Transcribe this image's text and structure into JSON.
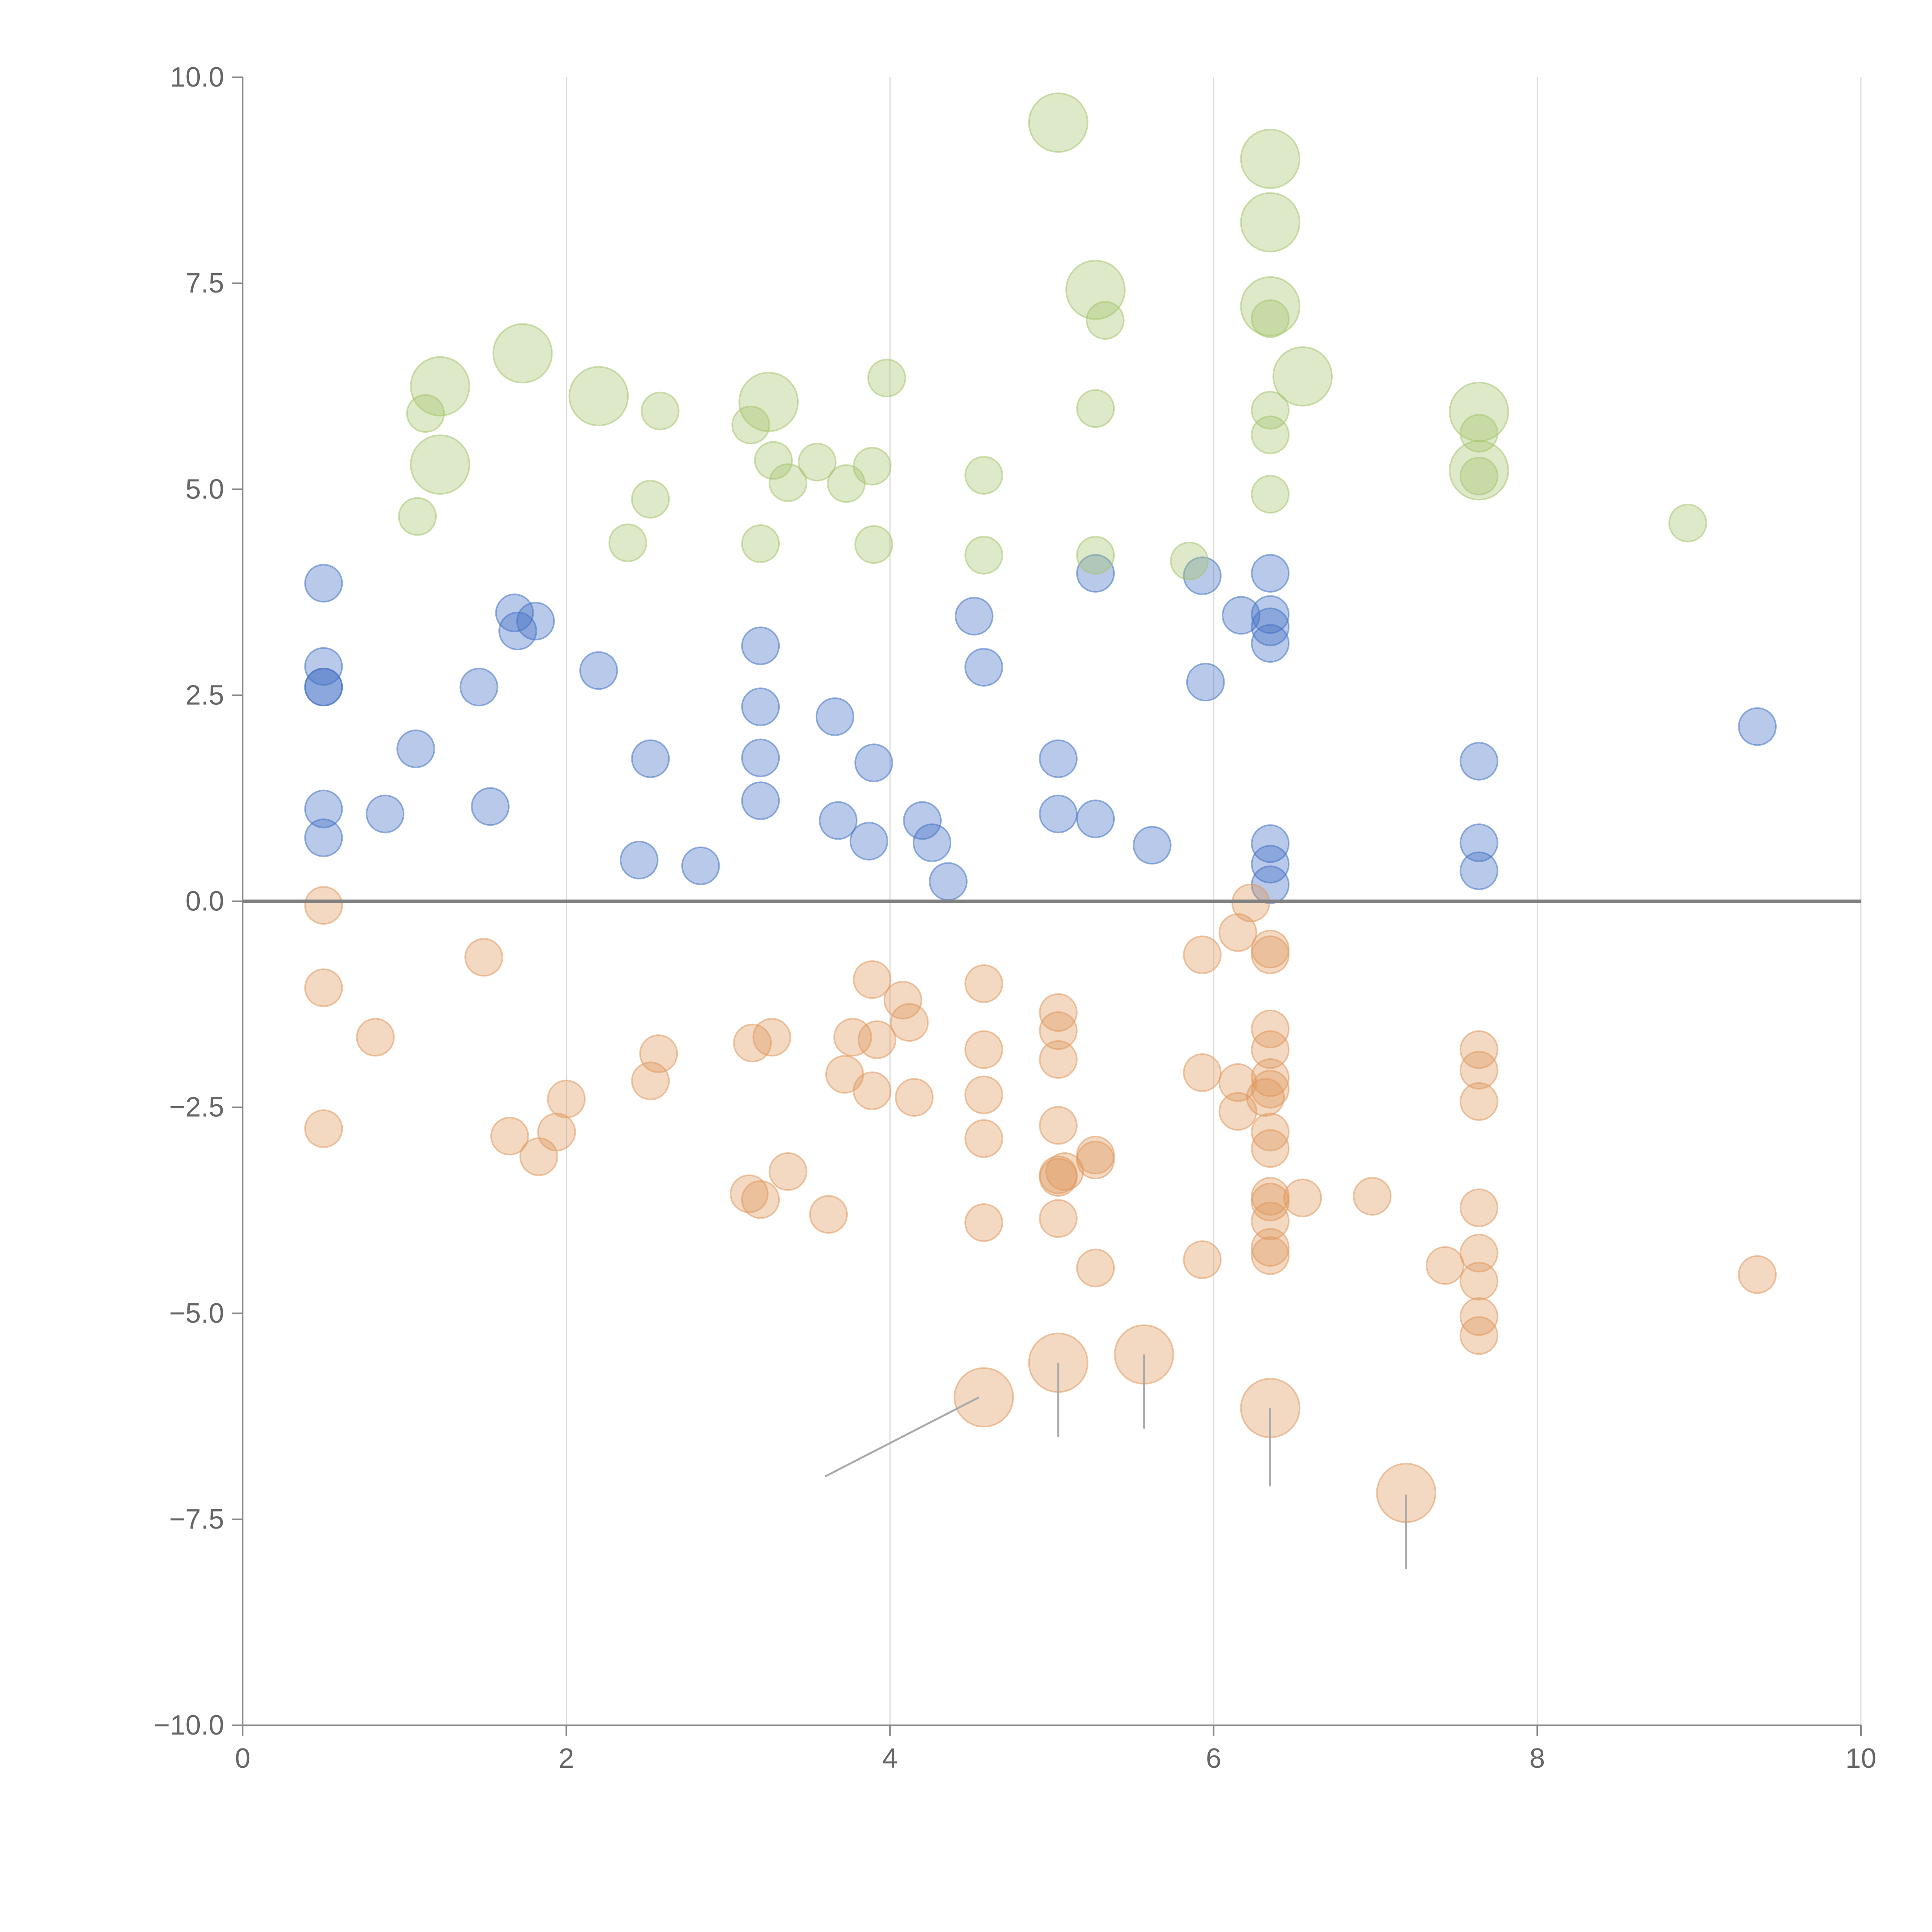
{
  "chart_data": {
    "type": "scatter",
    "variant": "bubble",
    "title": "",
    "xlabel": "",
    "ylabel": "",
    "xlim": [
      0,
      10
    ],
    "ylim": [
      -10,
      10
    ],
    "xticks": [
      0,
      2,
      4,
      6,
      8,
      10
    ],
    "xtick_labels": [
      "0",
      "2",
      "4",
      "6",
      "8",
      "10"
    ],
    "yticks": [
      -10,
      -7.5,
      -5,
      -2.5,
      0,
      2.5,
      5,
      7.5,
      10
    ],
    "ytick_labels": [
      "−10.0",
      "−7.5",
      "−5.0",
      "−2.5",
      "0.0",
      "2.5",
      "5.0",
      "7.5",
      "10.0"
    ],
    "grid": "vertical",
    "zero_line": true,
    "series": [
      {
        "name": "blue",
        "color": "#4472C4",
        "points": [
          [
            0.5,
            3.86
          ],
          [
            0.5,
            2.85
          ],
          [
            0.5,
            2.6
          ],
          [
            0.5,
            2.6
          ],
          [
            0.5,
            1.12
          ],
          [
            0.5,
            0.77
          ],
          [
            0.88,
            1.06
          ],
          [
            1.07,
            1.85
          ],
          [
            1.46,
            2.6
          ],
          [
            1.53,
            1.15
          ],
          [
            1.68,
            3.5
          ],
          [
            1.7,
            3.28
          ],
          [
            1.81,
            3.4
          ],
          [
            2.2,
            2.8
          ],
          [
            2.45,
            0.5
          ],
          [
            2.52,
            1.73
          ],
          [
            2.83,
            0.43
          ],
          [
            3.2,
            3.1
          ],
          [
            3.2,
            2.36
          ],
          [
            3.2,
            1.74
          ],
          [
            3.2,
            1.22
          ],
          [
            3.66,
            2.24
          ],
          [
            3.68,
            0.98
          ],
          [
            3.87,
            0.73
          ],
          [
            3.9,
            1.68
          ],
          [
            4.2,
            0.98
          ],
          [
            4.26,
            0.71
          ],
          [
            4.36,
            0.24
          ],
          [
            4.52,
            3.46
          ],
          [
            4.58,
            2.84
          ],
          [
            5.04,
            1.73
          ],
          [
            5.04,
            1.06
          ],
          [
            5.27,
            1.0
          ],
          [
            5.27,
            3.98
          ],
          [
            5.62,
            0.68
          ],
          [
            5.93,
            3.95
          ],
          [
            5.95,
            2.66
          ],
          [
            6.17,
            3.47
          ],
          [
            6.35,
            3.98
          ],
          [
            6.35,
            3.48
          ],
          [
            6.35,
            3.33
          ],
          [
            6.35,
            3.13
          ],
          [
            6.35,
            0.7
          ],
          [
            6.35,
            0.45
          ],
          [
            6.35,
            0.2
          ],
          [
            7.64,
            1.7
          ],
          [
            7.64,
            0.71
          ],
          [
            7.64,
            0.37
          ],
          [
            9.36,
            2.12
          ]
        ],
        "sizes": [
          1,
          1,
          1,
          1,
          1,
          1,
          1,
          1,
          1,
          1,
          1,
          1,
          1,
          1,
          1,
          1,
          1,
          1,
          1,
          1,
          1,
          1,
          1,
          1,
          1,
          1,
          1,
          1,
          1,
          1,
          1,
          1,
          1,
          1,
          1,
          1,
          1,
          1,
          1,
          1,
          1,
          1,
          1,
          1,
          1,
          1,
          1,
          1,
          1
        ]
      },
      {
        "name": "green",
        "color": "#A5C46E",
        "points": [
          [
            1.08,
            4.67
          ],
          [
            1.13,
            5.92
          ],
          [
            1.22,
            6.25
          ],
          [
            1.22,
            5.3
          ],
          [
            1.73,
            6.65
          ],
          [
            2.2,
            6.13
          ],
          [
            2.38,
            4.35
          ],
          [
            2.52,
            4.88
          ],
          [
            2.58,
            5.95
          ],
          [
            3.14,
            5.78
          ],
          [
            3.2,
            4.34
          ],
          [
            3.25,
            6.06
          ],
          [
            3.28,
            5.35
          ],
          [
            3.37,
            5.08
          ],
          [
            3.55,
            5.33
          ],
          [
            3.73,
            5.07
          ],
          [
            3.89,
            5.28
          ],
          [
            3.9,
            4.33
          ],
          [
            3.98,
            6.35
          ],
          [
            4.58,
            5.17
          ],
          [
            4.58,
            4.2
          ],
          [
            5.04,
            9.45
          ],
          [
            5.27,
            7.42
          ],
          [
            5.27,
            5.98
          ],
          [
            5.27,
            4.2
          ],
          [
            5.33,
            7.05
          ],
          [
            5.85,
            4.13
          ],
          [
            6.35,
            9.01
          ],
          [
            6.35,
            8.24
          ],
          [
            6.35,
            7.22
          ],
          [
            6.35,
            7.07
          ],
          [
            6.35,
            5.96
          ],
          [
            6.35,
            5.66
          ],
          [
            6.35,
            4.94
          ],
          [
            6.55,
            6.37
          ],
          [
            7.64,
            5.94
          ],
          [
            7.64,
            5.68
          ],
          [
            7.64,
            5.23
          ],
          [
            7.64,
            5.16
          ],
          [
            8.93,
            4.59
          ]
        ],
        "sizes": [
          1,
          1,
          2.5,
          2.5,
          2.5,
          2.5,
          1,
          1,
          1,
          1,
          1,
          2.5,
          1,
          1,
          1,
          1,
          1,
          1,
          1,
          1,
          1,
          2.5,
          2.5,
          1,
          1,
          1,
          1,
          2.5,
          2.5,
          2.5,
          1,
          1,
          1,
          1,
          2.5,
          2.5,
          1,
          2.5,
          1,
          1
        ]
      },
      {
        "name": "orange",
        "color": "#E0995E",
        "points": [
          [
            0.5,
            -0.05
          ],
          [
            0.5,
            -1.05
          ],
          [
            0.5,
            -2.76
          ],
          [
            0.82,
            -1.65
          ],
          [
            1.49,
            -0.68
          ],
          [
            1.65,
            -2.85
          ],
          [
            1.83,
            -3.1
          ],
          [
            1.94,
            -2.8
          ],
          [
            2.0,
            -2.4
          ],
          [
            2.52,
            -2.18
          ],
          [
            2.57,
            -1.85
          ],
          [
            3.13,
            -3.55
          ],
          [
            3.15,
            -1.72
          ],
          [
            3.2,
            -3.62
          ],
          [
            3.27,
            -1.65
          ],
          [
            3.37,
            -3.28
          ],
          [
            3.62,
            -3.8
          ],
          [
            3.72,
            -2.1
          ],
          [
            3.77,
            -1.65
          ],
          [
            3.89,
            -0.95
          ],
          [
            3.89,
            -2.3
          ],
          [
            3.92,
            -1.68
          ],
          [
            4.08,
            -1.2
          ],
          [
            4.12,
            -1.47
          ],
          [
            4.15,
            -2.38
          ],
          [
            4.58,
            -1.0
          ],
          [
            4.58,
            -1.8
          ],
          [
            4.58,
            -2.35
          ],
          [
            4.58,
            -2.88
          ],
          [
            4.58,
            -3.9
          ],
          [
            4.58,
            -6.02
          ],
          [
            5.04,
            -1.35
          ],
          [
            5.04,
            -1.57
          ],
          [
            5.04,
            -1.92
          ],
          [
            5.04,
            -2.72
          ],
          [
            5.04,
            -3.32
          ],
          [
            5.04,
            -3.35
          ],
          [
            5.04,
            -3.85
          ],
          [
            5.04,
            -5.6
          ],
          [
            5.08,
            -3.28
          ],
          [
            5.27,
            -3.08
          ],
          [
            5.27,
            -3.14
          ],
          [
            5.27,
            -4.45
          ],
          [
            5.57,
            -5.5
          ],
          [
            5.93,
            -0.65
          ],
          [
            5.93,
            -2.08
          ],
          [
            5.93,
            -4.35
          ],
          [
            6.15,
            -0.38
          ],
          [
            6.15,
            -2.2
          ],
          [
            6.15,
            -2.55
          ],
          [
            6.23,
            -0.02
          ],
          [
            6.32,
            -2.38
          ],
          [
            6.35,
            -0.58
          ],
          [
            6.35,
            -0.65
          ],
          [
            6.35,
            -1.55
          ],
          [
            6.35,
            -1.8
          ],
          [
            6.35,
            -2.14
          ],
          [
            6.35,
            -2.28
          ],
          [
            6.35,
            -2.8
          ],
          [
            6.35,
            -3.0
          ],
          [
            6.35,
            -3.58
          ],
          [
            6.35,
            -3.65
          ],
          [
            6.35,
            -3.88
          ],
          [
            6.35,
            -4.2
          ],
          [
            6.35,
            -4.3
          ],
          [
            6.35,
            -6.15
          ],
          [
            6.55,
            -3.6
          ],
          [
            6.98,
            -3.58
          ],
          [
            7.19,
            -7.18
          ],
          [
            7.43,
            -4.42
          ],
          [
            7.64,
            -1.8
          ],
          [
            7.64,
            -2.05
          ],
          [
            7.64,
            -2.43
          ],
          [
            7.64,
            -3.72
          ],
          [
            7.64,
            -4.27
          ],
          [
            7.64,
            -4.61
          ],
          [
            7.64,
            -5.04
          ],
          [
            7.64,
            -5.27
          ],
          [
            9.36,
            -4.53
          ]
        ],
        "sizes": [
          1,
          1,
          1,
          1,
          1,
          1,
          1,
          1,
          1,
          1,
          1,
          1,
          1,
          1,
          1,
          1,
          1,
          1,
          1,
          1,
          1,
          1,
          1,
          1,
          1,
          1,
          1,
          1,
          1,
          1,
          2.5,
          1,
          1,
          1,
          1,
          1,
          1,
          1,
          2.5,
          1,
          1,
          1,
          1,
          2.5,
          1,
          1,
          1,
          1,
          1,
          1,
          1,
          1,
          1,
          1,
          1,
          1,
          1,
          1,
          1,
          1,
          1,
          1,
          1,
          1,
          1,
          2.5,
          1,
          1,
          2.5,
          1,
          1,
          1,
          1,
          1,
          1,
          1,
          1,
          1,
          1
        ]
      }
    ],
    "leader_lines": [
      {
        "from": [
          4.55,
          -6.02
        ],
        "to": [
          3.6,
          -6.98
        ]
      },
      {
        "from": [
          5.04,
          -5.6
        ],
        "to": [
          5.04,
          -6.5
        ]
      },
      {
        "from": [
          5.57,
          -5.5
        ],
        "to": [
          5.57,
          -6.4
        ]
      },
      {
        "from": [
          6.35,
          -6.15
        ],
        "to": [
          6.35,
          -7.1
        ]
      },
      {
        "from": [
          7.19,
          -7.2
        ],
        "to": [
          7.19,
          -8.1
        ]
      }
    ]
  }
}
